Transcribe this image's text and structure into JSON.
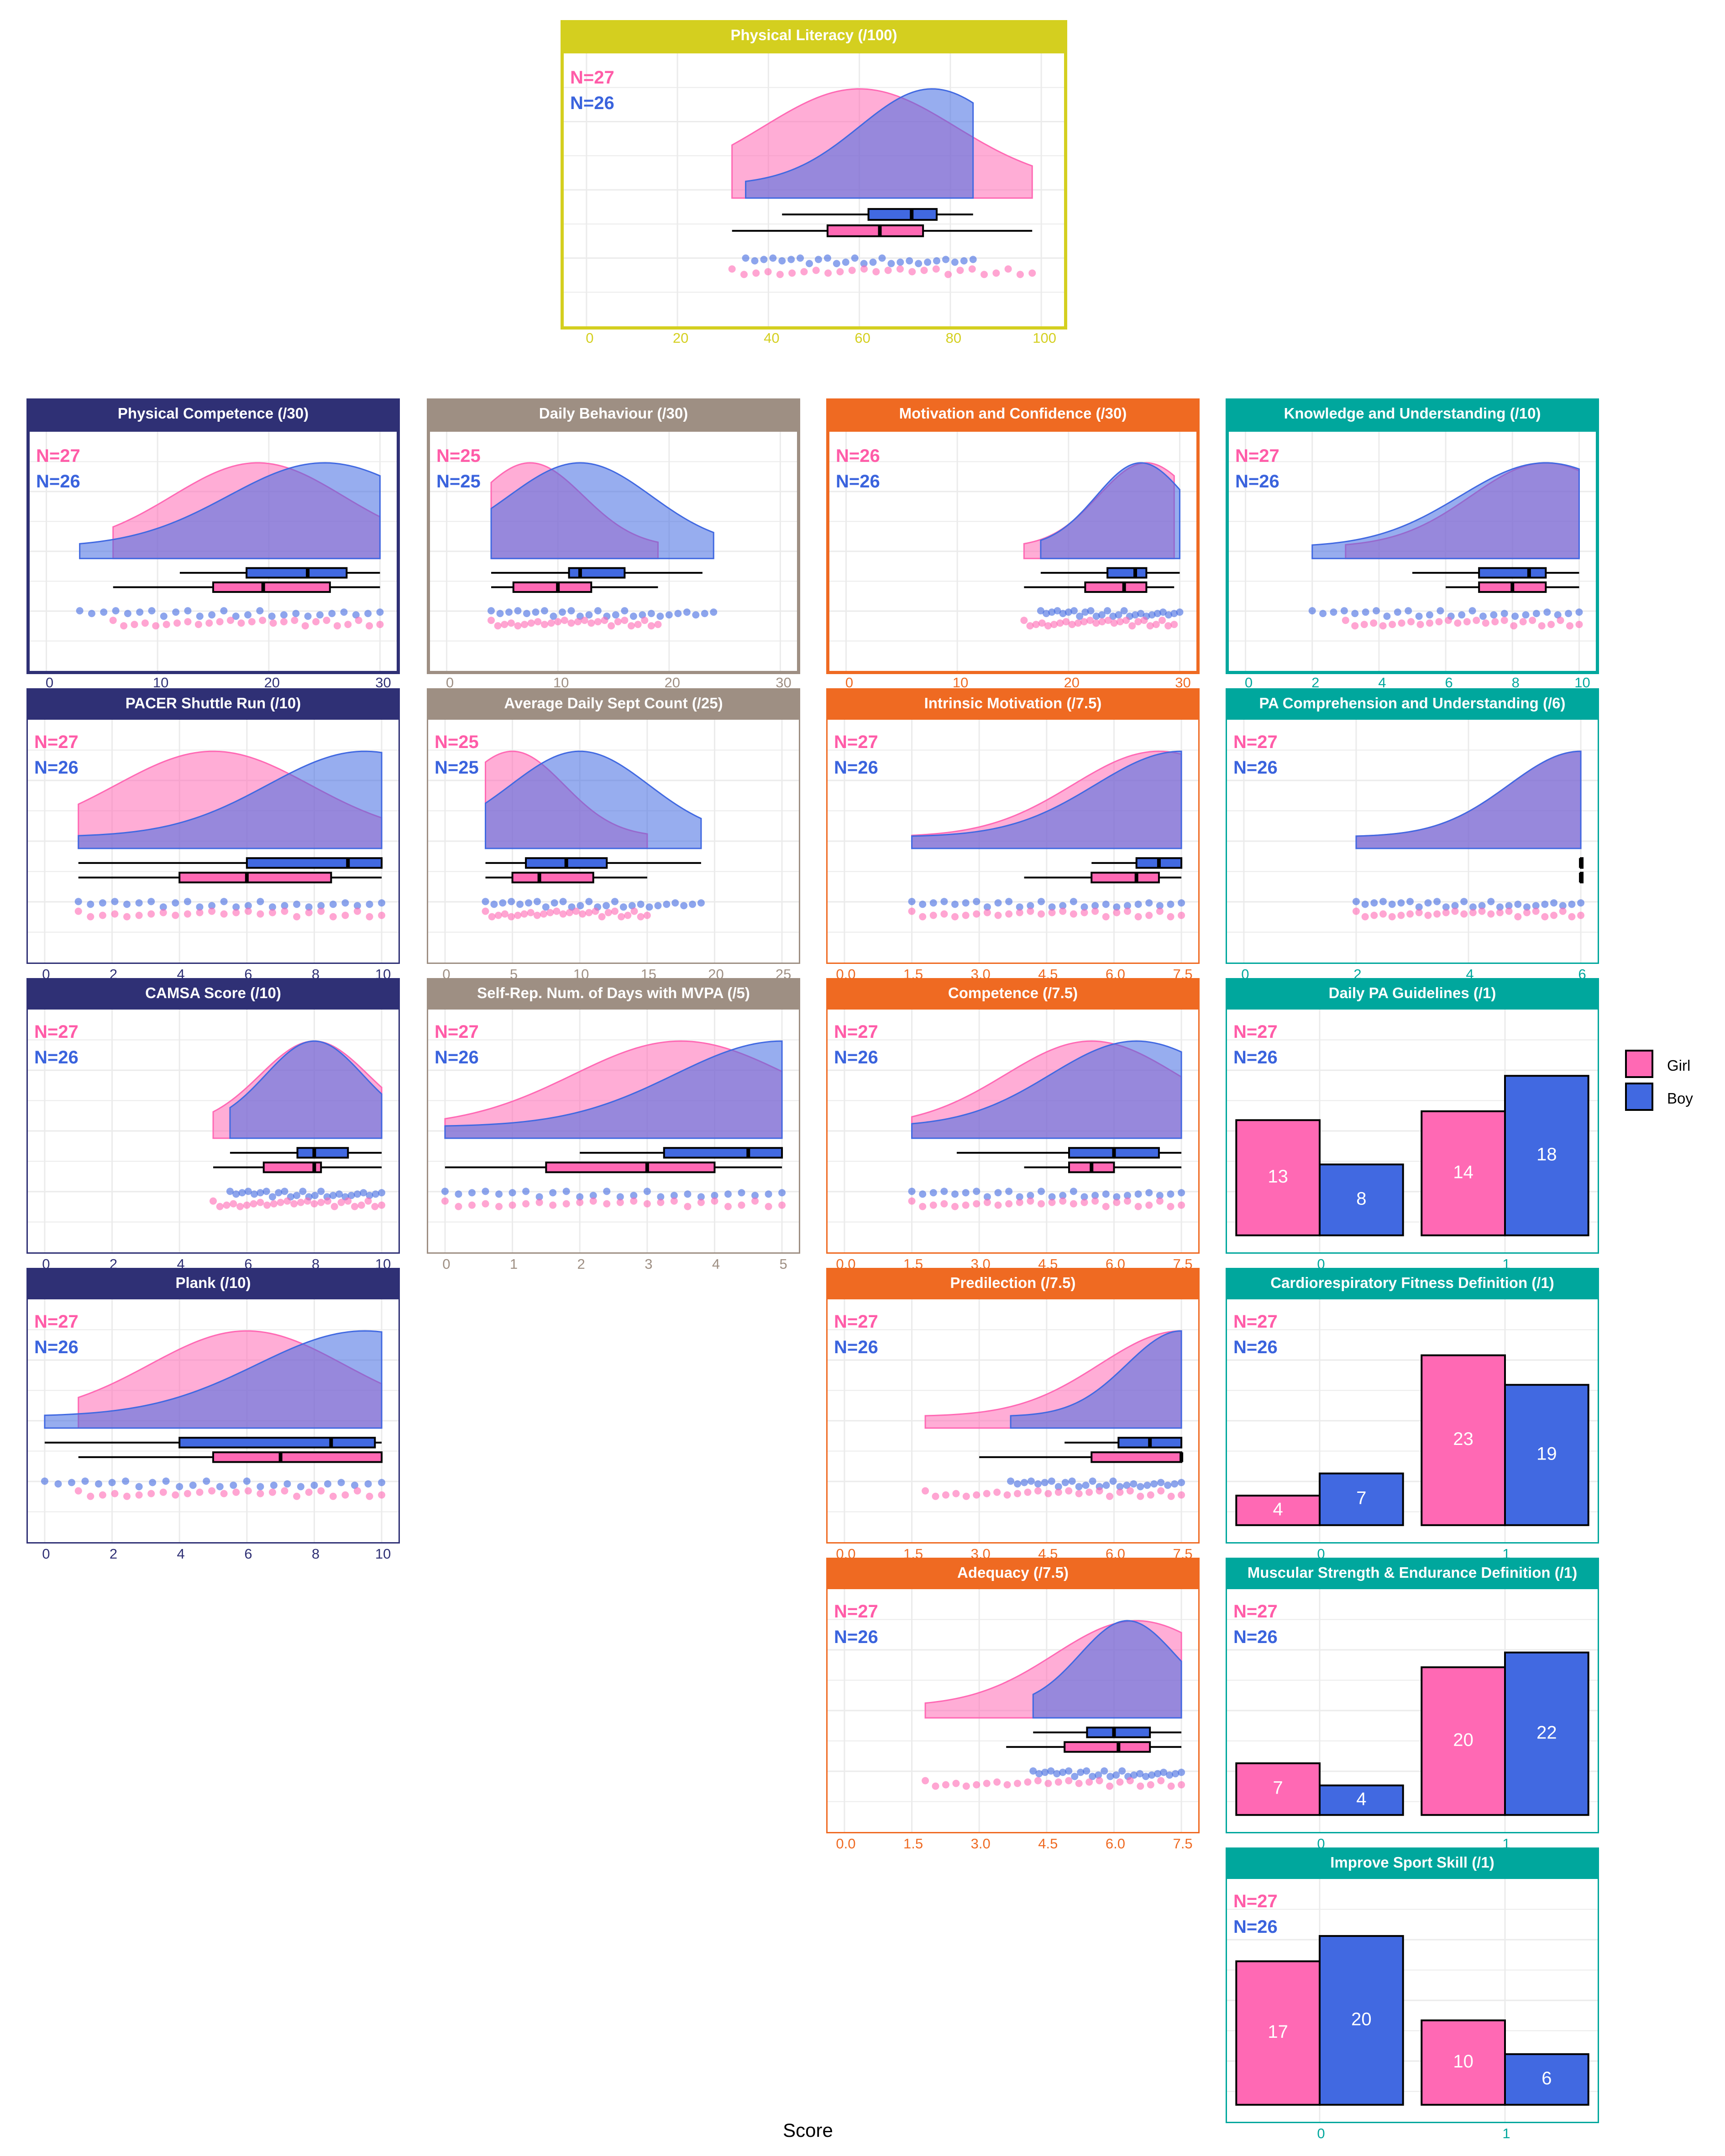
{
  "colors": {
    "girl": "#ff69b4",
    "boy": "#4169e1",
    "girl_text": "#ff5ca8",
    "boy_text": "#3a63dd",
    "olive": "#d4cf1f",
    "navy": "#2f3075",
    "taupe": "#9e8f83",
    "orange": "#ef6a22",
    "teal": "#00a79d"
  },
  "x_axis_title": "Score",
  "legend": {
    "items": [
      {
        "label": "Girl",
        "color": "#ff69b4"
      },
      {
        "label": "Boy",
        "color": "#4169e1"
      }
    ]
  },
  "chart_data": [
    {
      "type": "density-box",
      "title": "Physical Literacy (/100)",
      "theme": "olive",
      "n_girl": "N=27",
      "n_boy": "N=26",
      "xlim": [
        -5,
        105
      ],
      "xticks": [
        0,
        20,
        40,
        60,
        80,
        100
      ],
      "xticklabels": [
        "0",
        "20",
        "40",
        "60",
        "80",
        "100"
      ],
      "girl": {
        "range": [
          32,
          98
        ],
        "peak": 60,
        "box": [
          53,
          64.5,
          74
        ],
        "whisk": [
          32,
          98
        ]
      },
      "boy": {
        "range": [
          35,
          85
        ],
        "peak": 76,
        "box": [
          62,
          71.5,
          77
        ],
        "whisk": [
          43,
          85
        ]
      }
    },
    {
      "type": "density-box",
      "title": "Physical Competence (/30)",
      "theme": "navy",
      "n_girl": "N=27",
      "n_boy": "N=26",
      "xlim": [
        -1.5,
        31.5
      ],
      "xticks": [
        0,
        10,
        20,
        30
      ],
      "xticklabels": [
        "0",
        "10",
        "20",
        "30"
      ],
      "girl": {
        "range": [
          6,
          30
        ],
        "peak": 19,
        "box": [
          15,
          19.5,
          25.5
        ],
        "whisk": [
          6,
          30
        ]
      },
      "boy": {
        "range": [
          3,
          30
        ],
        "peak": 25,
        "box": [
          18,
          23.5,
          27
        ],
        "whisk": [
          12,
          30
        ]
      }
    },
    {
      "type": "density-box",
      "title": "Daily Behaviour (/30)",
      "theme": "taupe",
      "n_girl": "N=25",
      "n_boy": "N=25",
      "xlim": [
        -1.5,
        31.5
      ],
      "xticks": [
        0,
        10,
        20,
        30
      ],
      "xticklabels": [
        "0",
        "10",
        "20",
        "30"
      ],
      "girl": {
        "range": [
          4,
          19
        ],
        "peak": 7.5,
        "box": [
          6,
          10,
          13
        ],
        "whisk": [
          4,
          19
        ]
      },
      "boy": {
        "range": [
          4,
          24
        ],
        "peak": 12,
        "box": [
          11,
          12,
          16
        ],
        "whisk": [
          4,
          23
        ]
      }
    },
    {
      "type": "density-box",
      "title": "Motivation and Confidence (/30)",
      "theme": "orange",
      "n_girl": "N=26",
      "n_boy": "N=26",
      "xlim": [
        -1.5,
        31.5
      ],
      "xticks": [
        0,
        10,
        20,
        30
      ],
      "xticklabels": [
        "0",
        "10",
        "20",
        "30"
      ],
      "girl": {
        "range": [
          16,
          29.5
        ],
        "peak": 27,
        "box": [
          21.5,
          25,
          27
        ],
        "whisk": [
          16,
          29.5
        ]
      },
      "boy": {
        "range": [
          17.5,
          30
        ],
        "peak": 26.5,
        "box": [
          23.5,
          26,
          27
        ],
        "whisk": [
          17.5,
          30
        ]
      }
    },
    {
      "type": "density-box",
      "title": "Knowledge and Understanding (/10)",
      "theme": "teal",
      "n_girl": "N=27",
      "n_boy": "N=26",
      "xlim": [
        -0.5,
        10.5
      ],
      "xticks": [
        0,
        2,
        4,
        6,
        8,
        10
      ],
      "xticklabels": [
        "0",
        "2",
        "4",
        "6",
        "8",
        "10"
      ],
      "girl": {
        "range": [
          3,
          10
        ],
        "peak": 9,
        "box": [
          7,
          8,
          9
        ],
        "whisk": [
          6,
          10
        ]
      },
      "boy": {
        "range": [
          2,
          10
        ],
        "peak": 9,
        "box": [
          7,
          8.5,
          9
        ],
        "whisk": [
          5,
          10
        ]
      }
    },
    {
      "type": "density-box",
      "title": "PACER Shuttle Run (/10)",
      "theme": "navy",
      "n_girl": "N=27",
      "n_boy": "N=26",
      "xlim": [
        -0.5,
        10.5
      ],
      "xticks": [
        0,
        2,
        4,
        6,
        8,
        10
      ],
      "xticklabels": [
        "0",
        "2",
        "4",
        "6",
        "8",
        "10"
      ],
      "girl": {
        "range": [
          1,
          10
        ],
        "peak": 5,
        "box": [
          4,
          6,
          8.5
        ],
        "whisk": [
          1,
          10
        ]
      },
      "boy": {
        "range": [
          1,
          10
        ],
        "peak": 9.5,
        "box": [
          6,
          9,
          10
        ],
        "whisk": [
          1,
          10
        ]
      }
    },
    {
      "type": "density-box",
      "title": "Average Daily Sept Count (/25)",
      "theme": "taupe",
      "n_girl": "N=25",
      "n_boy": "N=25",
      "xlim": [
        -1.25,
        26.25
      ],
      "xticks": [
        0,
        5,
        10,
        15,
        20,
        25
      ],
      "xticklabels": [
        "0",
        "5",
        "10",
        "15",
        "20",
        "25"
      ],
      "girl": {
        "range": [
          3,
          15
        ],
        "peak": 5,
        "box": [
          5,
          7,
          11
        ],
        "whisk": [
          3,
          15
        ]
      },
      "boy": {
        "range": [
          3,
          19
        ],
        "peak": 10,
        "box": [
          6,
          9,
          12
        ],
        "whisk": [
          3,
          19
        ]
      }
    },
    {
      "type": "density-box",
      "title": "Intrinsic Motivation (/7.5)",
      "theme": "orange",
      "n_girl": "N=27",
      "n_boy": "N=26",
      "xlim": [
        -0.375,
        7.875
      ],
      "xticks": [
        0,
        1.5,
        3,
        4.5,
        6,
        7.5
      ],
      "xticklabels": [
        "0.0",
        "1.5",
        "3.0",
        "4.5",
        "6.0",
        "7.5"
      ],
      "girl": {
        "range": [
          1.5,
          7.5
        ],
        "peak": 7,
        "box": [
          5.5,
          6.5,
          7
        ],
        "whisk": [
          4,
          7.5
        ]
      },
      "boy": {
        "range": [
          1.5,
          7.5
        ],
        "peak": 7.5,
        "box": [
          6.5,
          7,
          7.5
        ],
        "whisk": [
          5.5,
          7.5
        ]
      }
    },
    {
      "type": "density-box",
      "title": "PA Comprehension and Understanding (/6)",
      "theme": "teal",
      "n_girl": "N=27",
      "n_boy": "N=26",
      "xlim": [
        -0.3,
        6.3
      ],
      "xticks": [
        0,
        2,
        4,
        6
      ],
      "xticklabels": [
        "0",
        "2",
        "4",
        "6"
      ],
      "girl": {
        "range": [
          2,
          6
        ],
        "peak": 6,
        "box": [
          6,
          6,
          6
        ],
        "whisk": [
          6,
          6
        ]
      },
      "boy": {
        "range": [
          2,
          6
        ],
        "peak": 6,
        "box": [
          6,
          6,
          6
        ],
        "whisk": [
          6,
          6
        ]
      }
    },
    {
      "type": "density-box",
      "title": "CAMSA Score (/10)",
      "theme": "navy",
      "n_girl": "N=27",
      "n_boy": "N=26",
      "xlim": [
        -0.5,
        10.5
      ],
      "xticks": [
        0,
        2,
        4,
        6,
        8,
        10
      ],
      "xticklabels": [
        "0",
        "2",
        "4",
        "6",
        "8",
        "10"
      ],
      "girl": {
        "range": [
          5,
          10
        ],
        "peak": 8,
        "box": [
          6.5,
          8,
          8.2
        ],
        "whisk": [
          5,
          10
        ]
      },
      "boy": {
        "range": [
          5.5,
          10
        ],
        "peak": 8,
        "box": [
          7.5,
          8,
          9
        ],
        "whisk": [
          5.5,
          10
        ]
      }
    },
    {
      "type": "density-box",
      "title": "Self-Rep. Num. of Days with MVPA (/5)",
      "theme": "taupe",
      "n_girl": "N=27",
      "n_boy": "N=26",
      "xlim": [
        -0.25,
        5.25
      ],
      "xticks": [
        0,
        1,
        2,
        3,
        4,
        5
      ],
      "xticklabels": [
        "0",
        "1",
        "2",
        "3",
        "4",
        "5"
      ],
      "girl": {
        "range": [
          0,
          5
        ],
        "peak": 3.5,
        "box": [
          1.5,
          3,
          4
        ],
        "whisk": [
          0,
          5
        ]
      },
      "boy": {
        "range": [
          0,
          5
        ],
        "peak": 5,
        "box": [
          3.25,
          4.5,
          5
        ],
        "whisk": [
          2,
          5
        ]
      }
    },
    {
      "type": "density-box",
      "title": "Competence (/7.5)",
      "theme": "orange",
      "n_girl": "N=27",
      "n_boy": "N=26",
      "xlim": [
        -0.375,
        7.875
      ],
      "xticks": [
        0,
        1.5,
        3,
        4.5,
        6,
        7.5
      ],
      "xticklabels": [
        "0.0",
        "1.5",
        "3.0",
        "4.5",
        "6.0",
        "7.5"
      ],
      "girl": {
        "range": [
          1.5,
          7.5
        ],
        "peak": 5.5,
        "box": [
          5,
          5.5,
          6
        ],
        "whisk": [
          4,
          7.5
        ]
      },
      "boy": {
        "range": [
          1.5,
          7.5
        ],
        "peak": 6.5,
        "box": [
          5,
          6,
          7
        ],
        "whisk": [
          2.5,
          7.5
        ]
      }
    },
    {
      "type": "bar",
      "title": "Daily PA Guidelines (/1)",
      "theme": "teal",
      "n_girl": "N=27",
      "n_boy": "N=26",
      "categories": [
        "0",
        "1"
      ],
      "series": [
        {
          "name": "Girl",
          "values": [
            13,
            14
          ]
        },
        {
          "name": "Boy",
          "values": [
            8,
            18
          ]
        }
      ],
      "ylim": [
        0,
        20
      ]
    },
    {
      "type": "density-box",
      "title": "Plank (/10)",
      "theme": "navy",
      "n_girl": "N=27",
      "n_boy": "N=26",
      "xlim": [
        -0.5,
        10.5
      ],
      "xticks": [
        0,
        2,
        4,
        6,
        8,
        10
      ],
      "xticklabels": [
        "0",
        "2",
        "4",
        "6",
        "8",
        "10"
      ],
      "girl": {
        "range": [
          1,
          10
        ],
        "peak": 6,
        "box": [
          5,
          7,
          10
        ],
        "whisk": [
          1,
          10
        ]
      },
      "boy": {
        "range": [
          0,
          10
        ],
        "peak": 9.5,
        "box": [
          4,
          8.5,
          9.8
        ],
        "whisk": [
          0,
          10
        ]
      }
    },
    {
      "type": "density-box",
      "title": "Predilection (/7.5)",
      "theme": "orange",
      "n_girl": "N=27",
      "n_boy": "N=26",
      "xlim": [
        -0.375,
        7.875
      ],
      "xticks": [
        0,
        1.5,
        3,
        4.5,
        6,
        7.5
      ],
      "xticklabels": [
        "0.0",
        "1.5",
        "3.0",
        "4.5",
        "6.0",
        "7.5"
      ],
      "girl": {
        "range": [
          1.8,
          7.5
        ],
        "peak": 7.5,
        "box": [
          5.5,
          7.5,
          7.5
        ],
        "whisk": [
          3,
          7.5
        ]
      },
      "boy": {
        "range": [
          3.7,
          7.5
        ],
        "peak": 7.5,
        "box": [
          6.1,
          6.8,
          7.5
        ],
        "whisk": [
          4.9,
          7.5
        ]
      }
    },
    {
      "type": "bar",
      "title": "Cardiorespiratory Fitness Definition (/1)",
      "theme": "teal",
      "n_girl": "N=27",
      "n_boy": "N=26",
      "categories": [
        "0",
        "1"
      ],
      "series": [
        {
          "name": "Girl",
          "values": [
            4,
            23
          ]
        },
        {
          "name": "Boy",
          "values": [
            7,
            19
          ]
        }
      ],
      "ylim": [
        0,
        24
      ]
    },
    {
      "type": "density-box",
      "title": "Adequacy (/7.5)",
      "theme": "orange",
      "n_girl": "N=27",
      "n_boy": "N=26",
      "xlim": [
        -0.375,
        7.875
      ],
      "xticks": [
        0,
        1.5,
        3,
        4.5,
        6,
        7.5
      ],
      "xticklabels": [
        "0.0",
        "1.5",
        "3.0",
        "4.5",
        "6.0",
        "7.5"
      ],
      "girl": {
        "range": [
          1.8,
          7.5
        ],
        "peak": 6.5,
        "box": [
          4.9,
          6.1,
          6.8
        ],
        "whisk": [
          3.6,
          7.5
        ]
      },
      "boy": {
        "range": [
          4.2,
          7.5
        ],
        "peak": 6.3,
        "box": [
          5.4,
          6,
          6.8
        ],
        "whisk": [
          4.2,
          7.5
        ]
      }
    },
    {
      "type": "bar",
      "title": "Muscular Strength & Endurance Definition (/1)",
      "theme": "teal",
      "n_girl": "N=27",
      "n_boy": "N=26",
      "categories": [
        "0",
        "1"
      ],
      "series": [
        {
          "name": "Girl",
          "values": [
            7,
            20
          ]
        },
        {
          "name": "Boy",
          "values": [
            4,
            22
          ]
        }
      ],
      "ylim": [
        0,
        24
      ]
    },
    {
      "type": "bar",
      "title": "Improve Sport Skill (/1)",
      "theme": "teal",
      "n_girl": "N=27",
      "n_boy": "N=26",
      "categories": [
        "0",
        "1"
      ],
      "series": [
        {
          "name": "Girl",
          "values": [
            17,
            10
          ]
        },
        {
          "name": "Boy",
          "values": [
            20,
            6
          ]
        }
      ],
      "ylim": [
        0,
        21
      ]
    }
  ]
}
